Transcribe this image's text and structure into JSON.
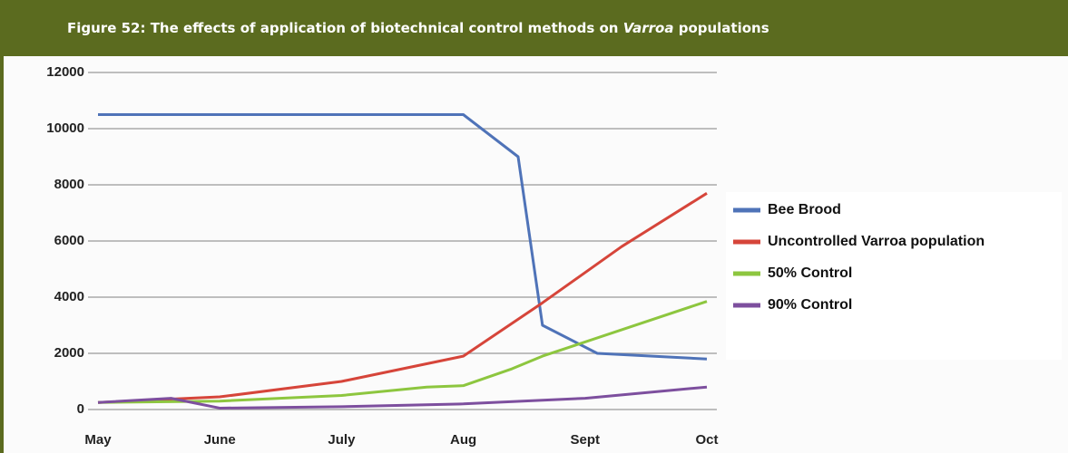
{
  "chart_data": {
    "type": "line",
    "title": [
      "Figure 52: The effects of application of biotechnical control methods on ",
      "Varroa",
      " populations"
    ],
    "xlim": [
      0,
      5
    ],
    "xticks": [
      {
        "value": 0,
        "label": "May"
      },
      {
        "value": 1,
        "label": "June"
      },
      {
        "value": 2,
        "label": "July"
      },
      {
        "value": 3,
        "label": "Aug"
      },
      {
        "value": 4,
        "label": "Sept"
      },
      {
        "value": 5,
        "label": "Oct"
      }
    ],
    "ylim": [
      0,
      12000
    ],
    "yticks": [
      0,
      2000,
      4000,
      6000,
      8000,
      10000,
      12000
    ],
    "grid": true,
    "legend": "right",
    "series": [
      {
        "name": "Bee Brood",
        "color": "#4f73b8",
        "x": [
          0,
          3,
          3.45,
          3.65,
          4.1,
          5
        ],
        "values": [
          10500,
          10500,
          9000,
          3000,
          2000,
          1800
        ]
      },
      {
        "name": "Uncontrolled Varroa population",
        "color": "#d6453a",
        "x": [
          0,
          1,
          2,
          3,
          3.65,
          4.3,
          5
        ],
        "values": [
          250,
          450,
          1000,
          1900,
          3800,
          5800,
          7700
        ]
      },
      {
        "name": "50% Control",
        "color": "#8dc63f",
        "x": [
          0,
          1,
          2,
          2.7,
          3,
          3.4,
          3.65,
          5
        ],
        "values": [
          250,
          300,
          500,
          800,
          850,
          1450,
          1900,
          3850
        ]
      },
      {
        "name": "90% Control",
        "color": "#7d4f9e",
        "x": [
          0,
          0.6,
          1,
          2,
          3,
          4,
          5
        ],
        "values": [
          250,
          400,
          50,
          100,
          200,
          400,
          800
        ]
      }
    ]
  }
}
